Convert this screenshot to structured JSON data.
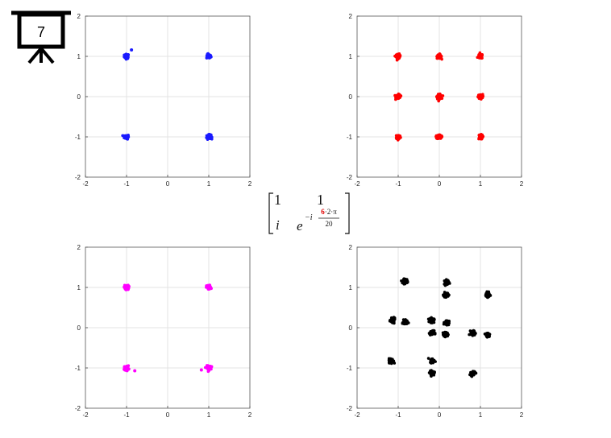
{
  "slide_number": "7",
  "matrix": {
    "r1c1": "1",
    "r1c2": "1",
    "r2c1": "i",
    "r2c2_base": "e",
    "exponent_prefix": "−i",
    "numerator_highlight": "6",
    "numerator_rest": "·2·π",
    "denominator": "20"
  },
  "chart_data": [
    {
      "type": "scatter",
      "title": "",
      "xlabel": "",
      "ylabel": "",
      "xlim": [
        -2,
        2
      ],
      "ylim": [
        -2,
        2
      ],
      "xticks": [
        "-2",
        "-1",
        "0",
        "1",
        "2"
      ],
      "yticks": [
        "-2",
        "-1",
        "0",
        "1",
        "2"
      ],
      "grid": true,
      "color": "#1a1aff",
      "series": [
        {
          "points": [
            [
              -1,
              1
            ],
            [
              1,
              1
            ],
            [
              -1,
              -1
            ],
            [
              1,
              -1
            ]
          ],
          "spread": 0.05
        }
      ],
      "outliers": [
        [
          -0.88,
          1.16
        ]
      ]
    },
    {
      "type": "scatter",
      "title": "",
      "xlabel": "",
      "ylabel": "",
      "xlim": [
        -2,
        2
      ],
      "ylim": [
        -2,
        2
      ],
      "xticks": [
        "-2",
        "-1",
        "0",
        "1",
        "2"
      ],
      "yticks": [
        "-2",
        "-1",
        "0",
        "1",
        "2"
      ],
      "grid": true,
      "color": "#ff0000",
      "series": [
        {
          "points": [
            [
              -1,
              1
            ],
            [
              0,
              1
            ],
            [
              1,
              1
            ],
            [
              -1,
              0
            ],
            [
              0,
              0
            ],
            [
              1,
              0
            ],
            [
              -1,
              -1
            ],
            [
              0,
              -1
            ],
            [
              1,
              -1
            ]
          ],
          "spread": 0.05
        }
      ]
    },
    {
      "type": "scatter",
      "title": "",
      "xlabel": "",
      "ylabel": "",
      "xlim": [
        -2,
        2
      ],
      "ylim": [
        -2,
        2
      ],
      "xticks": [
        "-2",
        "-1",
        "0",
        "1",
        "2"
      ],
      "yticks": [
        "-2",
        "-1",
        "0",
        "1",
        "2"
      ],
      "grid": true,
      "color": "#ff00ff",
      "series": [
        {
          "points": [
            [
              -1,
              1
            ],
            [
              1,
              1
            ],
            [
              -1,
              -1
            ],
            [
              1,
              -1
            ]
          ],
          "spread": 0.05
        }
      ],
      "outliers": [
        [
          -0.8,
          -1.07
        ],
        [
          0.82,
          -1.05
        ]
      ]
    },
    {
      "type": "scatter",
      "title": "",
      "xlabel": "",
      "ylabel": "",
      "xlim": [
        -2,
        2
      ],
      "ylim": [
        -2,
        2
      ],
      "xticks": [
        "-2",
        "-1",
        "0",
        "1",
        "2"
      ],
      "yticks": [
        "-2",
        "-1",
        "0",
        "1",
        "2"
      ],
      "grid": true,
      "color": "#000000",
      "series": [
        {
          "points": [
            [
              -0.82,
              1.16
            ],
            [
              0.18,
              1.13
            ],
            [
              0.16,
              0.82
            ],
            [
              1.17,
              0.82
            ],
            [
              -1.13,
              0.18
            ],
            [
              -0.83,
              0.13
            ],
            [
              -0.18,
              0.18
            ],
            [
              0.18,
              0.13
            ],
            [
              -0.18,
              -0.13
            ],
            [
              0.16,
              -0.17
            ],
            [
              0.82,
              -0.13
            ],
            [
              1.18,
              -0.17
            ],
            [
              -1.17,
              -0.82
            ],
            [
              -0.17,
              -0.82
            ],
            [
              -0.18,
              -1.13
            ],
            [
              0.82,
              -1.13
            ]
          ],
          "spread": 0.05
        }
      ]
    }
  ]
}
